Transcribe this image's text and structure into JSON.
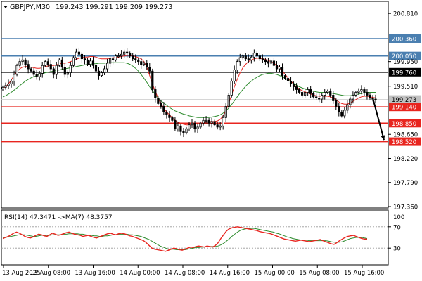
{
  "symbol_header": {
    "symbol": "GBPJPY,M30",
    "ohlc": "199.243 199.291 199.209 199.273"
  },
  "chart_data": [
    {
      "type": "candlestick",
      "panel": "price",
      "symbol": "GBPJPY",
      "timeframe": "M30",
      "ylim": [
        197.36,
        201.0
      ],
      "y_ticks": [
        "200.810",
        "200.360",
        "200.050",
        "199.950",
        "199.760",
        "199.510",
        "199.273",
        "199.140",
        "198.850",
        "198.650",
        "198.520",
        "198.220",
        "197.790",
        "197.360"
      ],
      "last_price": "199.273",
      "horizontal_levels": [
        {
          "value": 200.36,
          "label": "200.360",
          "color": "#4a7fb0"
        },
        {
          "value": 200.05,
          "label": "200.050",
          "color": "#4a7fb0"
        },
        {
          "value": 199.76,
          "label": "199.760",
          "color": "#000000"
        },
        {
          "value": 199.14,
          "label": "199.140",
          "color": "#e8251f"
        },
        {
          "value": 198.85,
          "label": "198.850",
          "color": "#e8251f"
        },
        {
          "value": 198.52,
          "label": "198.520",
          "color": "#e8251f"
        }
      ],
      "forecast_arrow": {
        "from": 199.3,
        "to": 198.55
      },
      "close_series": [
        199.49,
        199.52,
        199.55,
        199.6,
        199.72,
        199.88,
        199.95,
        199.98,
        199.9,
        199.82,
        199.78,
        199.72,
        199.68,
        199.74,
        199.88,
        199.95,
        199.9,
        199.82,
        199.72,
        199.88,
        199.98,
        199.85,
        199.72,
        199.75,
        199.88,
        200.02,
        200.12,
        200.08,
        200.0,
        199.98,
        199.9,
        199.96,
        199.88,
        199.78,
        199.7,
        199.75,
        199.82,
        199.92,
        200.0,
        199.98,
        200.05,
        200.05,
        200.08,
        200.12,
        200.1,
        200.05,
        200.0,
        199.98,
        199.95,
        199.9,
        199.92,
        199.85,
        199.78,
        199.45,
        199.3,
        199.2,
        199.15,
        199.05,
        199.0,
        198.95,
        198.9,
        198.75,
        198.8,
        198.7,
        198.68,
        198.75,
        198.82,
        198.85,
        198.75,
        198.78,
        198.85,
        198.9,
        198.9,
        198.85,
        198.88,
        198.82,
        198.78,
        198.8,
        198.95,
        199.15,
        199.35,
        199.6,
        199.8,
        199.95,
        200.02,
        200.05,
        200.0,
        199.98,
        200.03,
        200.1,
        200.05,
        200.0,
        199.98,
        199.95,
        199.92,
        199.96,
        199.88,
        199.82,
        199.85,
        199.7,
        199.65,
        199.6,
        199.55,
        199.5,
        199.45,
        199.4,
        199.35,
        199.4,
        199.45,
        199.38,
        199.32,
        199.3,
        199.28,
        199.35,
        199.4,
        199.42,
        199.35,
        199.25,
        199.15,
        199.05,
        198.98,
        199.08,
        199.18,
        199.28,
        199.35,
        199.4,
        199.42,
        199.45,
        199.4,
        199.35,
        199.3,
        199.28,
        199.27
      ],
      "ma_fast": [
        199.47,
        199.5,
        199.55,
        199.62,
        199.7,
        199.77,
        199.82,
        199.85,
        199.86,
        199.86,
        199.85,
        199.84,
        199.83,
        199.83,
        199.84,
        199.86,
        199.87,
        199.88,
        199.88,
        199.89,
        199.91,
        199.92,
        199.92,
        199.93,
        199.95,
        199.97,
        199.99,
        200.01,
        200.02,
        200.03,
        200.03,
        200.04,
        200.04,
        200.03,
        200.01,
        200.0,
        200.0,
        200.0,
        200.01,
        200.02,
        200.02,
        200.03,
        200.04,
        200.05,
        200.06,
        200.06,
        200.05,
        200.04,
        200.02,
        200.0,
        199.95,
        199.85,
        199.7,
        199.55,
        199.42,
        199.3,
        199.2,
        199.12,
        199.05,
        199.0,
        198.95,
        198.9,
        198.87,
        198.85,
        198.83,
        198.82,
        198.82,
        198.82,
        198.83,
        198.84,
        198.85,
        198.86,
        198.87,
        198.88,
        198.88,
        198.88,
        198.89,
        198.92,
        198.98,
        199.08,
        199.2,
        199.35,
        199.5,
        199.63,
        199.75,
        199.84,
        199.9,
        199.95,
        199.98,
        200.0,
        200.01,
        200.01,
        200.0,
        199.99,
        199.97,
        199.95,
        199.92,
        199.88,
        199.83,
        199.78,
        199.72,
        199.66,
        199.6,
        199.55,
        199.5,
        199.46,
        199.43,
        199.41,
        199.39,
        199.37,
        199.35,
        199.34,
        199.33,
        199.33,
        199.33,
        199.33,
        199.32,
        199.3,
        199.27,
        199.23,
        199.2,
        199.19,
        199.19,
        199.21,
        199.24,
        199.27,
        199.3,
        199.32,
        199.33,
        199.33,
        199.32,
        199.31,
        199.3
      ],
      "ma_slow": [
        199.32,
        199.34,
        199.37,
        199.4,
        199.44,
        199.48,
        199.52,
        199.56,
        199.6,
        199.63,
        199.66,
        199.68,
        199.7,
        199.72,
        199.73,
        199.75,
        199.76,
        199.77,
        199.78,
        199.79,
        199.8,
        199.81,
        199.82,
        199.83,
        199.84,
        199.85,
        199.86,
        199.87,
        199.88,
        199.89,
        199.9,
        199.9,
        199.91,
        199.91,
        199.92,
        199.92,
        199.92,
        199.93,
        199.93,
        199.93,
        199.93,
        199.93,
        199.93,
        199.93,
        199.92,
        199.9,
        199.87,
        199.83,
        199.78,
        199.72,
        199.65,
        199.58,
        199.5,
        199.43,
        199.36,
        199.3,
        199.25,
        199.21,
        199.17,
        199.13,
        199.1,
        199.07,
        199.05,
        199.03,
        199.01,
        199.0,
        198.98,
        198.97,
        198.96,
        198.95,
        198.95,
        198.95,
        198.95,
        198.95,
        198.96,
        198.97,
        198.98,
        199.0,
        199.03,
        199.07,
        199.12,
        199.18,
        199.25,
        199.32,
        199.39,
        199.45,
        199.51,
        199.56,
        199.6,
        199.64,
        199.67,
        199.7,
        199.72,
        199.73,
        199.74,
        199.74,
        199.73,
        199.72,
        199.7,
        199.68,
        199.65,
        199.62,
        199.59,
        199.56,
        199.53,
        199.5,
        199.48,
        199.46,
        199.44,
        199.43,
        199.42,
        199.41,
        199.4,
        199.4,
        199.4,
        199.4,
        199.39,
        199.38,
        199.37,
        199.36,
        199.35,
        199.34,
        199.34,
        199.34,
        199.35,
        199.36,
        199.37,
        199.38,
        199.39,
        199.4,
        199.4,
        199.4,
        199.4
      ]
    },
    {
      "type": "line",
      "panel": "indicator",
      "title": "RSI(14) 47.3471 ->MA(7) 48.3757",
      "ylim": [
        0,
        100
      ],
      "y_ticks": [
        "70",
        "30"
      ],
      "top_label": "100",
      "levels": [
        70,
        30
      ],
      "series": [
        {
          "name": "RSI(14)",
          "color": "#e8251f",
          "values": [
            48,
            50,
            52,
            55,
            58,
            60,
            58,
            55,
            52,
            50,
            49,
            51,
            54,
            56,
            55,
            53,
            52,
            55,
            58,
            56,
            54,
            55,
            57,
            59,
            60,
            58,
            56,
            55,
            54,
            52,
            53,
            54,
            52,
            50,
            49,
            51,
            53,
            55,
            57,
            58,
            56,
            55,
            57,
            58,
            57,
            55,
            53,
            52,
            50,
            48,
            46,
            44,
            40,
            35,
            30,
            28,
            27,
            26,
            25,
            24,
            26,
            28,
            30,
            29,
            27,
            26,
            28,
            30,
            32,
            31,
            33,
            34,
            33,
            32,
            34,
            33,
            32,
            35,
            40,
            48,
            55,
            62,
            66,
            68,
            69,
            70,
            69,
            68,
            67,
            66,
            65,
            64,
            63,
            61,
            60,
            59,
            58,
            57,
            55,
            53,
            51,
            49,
            47,
            46,
            45,
            44,
            43,
            44,
            45,
            44,
            43,
            42,
            43,
            44,
            45,
            46,
            44,
            42,
            40,
            38,
            37,
            40,
            44,
            47,
            50,
            52,
            53,
            54,
            52,
            50,
            48,
            47,
            47
          ]
        },
        {
          "name": "MA(7)",
          "color": "#2e8b2e",
          "values": [
            50,
            50,
            51,
            52,
            53,
            54,
            55,
            55,
            55,
            54,
            53,
            52,
            52,
            53,
            54,
            54,
            54,
            54,
            55,
            55,
            55,
            55,
            56,
            56,
            57,
            57,
            57,
            57,
            56,
            56,
            55,
            54,
            54,
            53,
            53,
            52,
            52,
            53,
            53,
            54,
            55,
            55,
            56,
            56,
            56,
            56,
            55,
            55,
            54,
            53,
            52,
            50,
            48,
            46,
            43,
            40,
            37,
            34,
            32,
            30,
            28,
            28,
            28,
            27,
            27,
            27,
            27,
            28,
            29,
            30,
            31,
            31,
            32,
            32,
            33,
            33,
            33,
            33,
            34,
            36,
            39,
            43,
            47,
            52,
            56,
            60,
            63,
            65,
            66,
            67,
            67,
            67,
            66,
            65,
            64,
            63,
            62,
            61,
            60,
            58,
            57,
            55,
            53,
            51,
            50,
            48,
            47,
            46,
            45,
            45,
            45,
            44,
            44,
            44,
            44,
            44,
            44,
            44,
            43,
            42,
            41,
            41,
            41,
            42,
            44,
            46,
            48,
            49,
            50,
            50,
            50,
            49,
            48
          ]
        }
      ]
    }
  ],
  "x_axis": {
    "ticks": [
      "13 Aug 2025",
      "13 Aug 08:00",
      "13 Aug 16:00",
      "14 Aug 00:00",
      "14 Aug 08:00",
      "14 Aug 16:00",
      "15 Aug 00:00",
      "15 Aug 08:00",
      "15 Aug 16:00"
    ]
  },
  "colors": {
    "background": "#ffffff",
    "candle": "#000000",
    "ma_fast": "#e8251f",
    "ma_slow": "#2e8b2e",
    "last_price_label_bg": "#c0c0c0"
  }
}
